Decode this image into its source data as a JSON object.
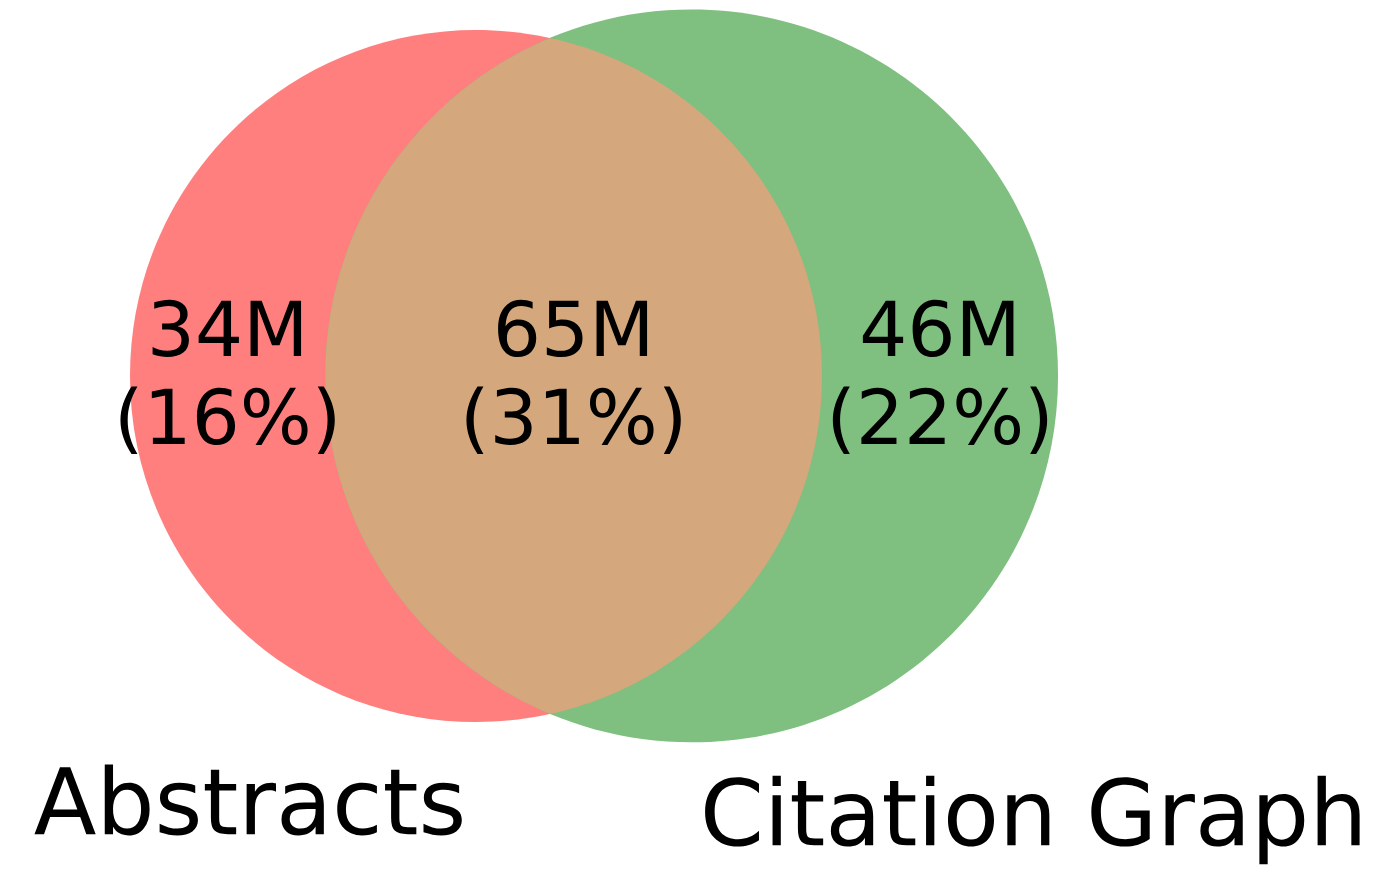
{
  "chart_data": {
    "type": "other",
    "categories": [
      null,
      null,
      null
    ],
    "values": [
      34,
      65,
      46
    ],
    "value_labels": [
      "34M",
      "65M",
      "46M"
    ],
    "annotations": [
      "(16%)",
      "(31%)",
      "(22%)",
      "Abstracts",
      "Citation Graph"
    ],
    "colors": [
      "#ff7f7f",
      "#d4a87c",
      "#7fbf7f"
    ]
  }
}
